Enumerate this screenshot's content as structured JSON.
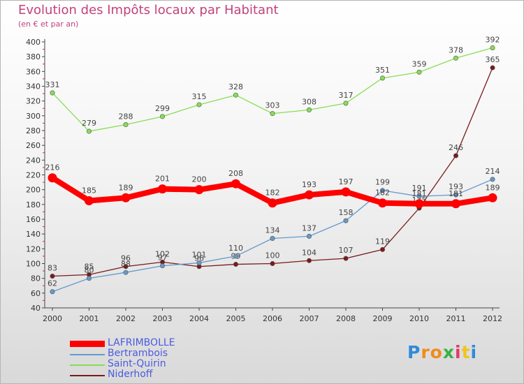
{
  "chart_data": {
    "type": "line",
    "title": "Evolution des Impôts locaux par Habitant",
    "subtitle": "(en € et par an)",
    "x": [
      "2000",
      "2001",
      "2002",
      "2003",
      "2004",
      "2005",
      "2006",
      "2007",
      "2008",
      "2009",
      "2010",
      "2011",
      "2012"
    ],
    "ylim": [
      40,
      400
    ],
    "yticks": [
      40,
      60,
      80,
      100,
      120,
      140,
      160,
      180,
      200,
      220,
      240,
      260,
      280,
      300,
      320,
      340,
      360,
      380,
      400
    ],
    "grid": false,
    "legend_position": "bottom-left",
    "series": [
      {
        "name": "LAFRIMBOLLE",
        "color": "#ff0000",
        "values": [
          216,
          185,
          189,
          201,
          200,
          208,
          182,
          193,
          197,
          182,
          181,
          181,
          189
        ]
      },
      {
        "name": "Bertrambois",
        "color": "#6699cc",
        "values": [
          62,
          80,
          88,
          97,
          101,
          110,
          134,
          137,
          158,
          199,
          191,
          193,
          214
        ]
      },
      {
        "name": "Saint-Quirin",
        "color": "#88dd55",
        "values": [
          331,
          279,
          288,
          299,
          315,
          328,
          303,
          308,
          317,
          351,
          359,
          378,
          392
        ]
      },
      {
        "name": "Niderhoff",
        "color": "#7a1a1a",
        "values": [
          83,
          85,
          96,
          102,
          96,
          99,
          100,
          104,
          107,
          119,
          175,
          246,
          365
        ]
      }
    ]
  },
  "logo": {
    "letters": [
      "P",
      "r",
      "o",
      "x",
      "i",
      "t",
      "i"
    ],
    "colors": [
      "#2e8bd8",
      "#f08c1a",
      "#f08c1a",
      "#3cb043",
      "#e03a6a",
      "#f0c419",
      "#2e8bd8"
    ]
  }
}
